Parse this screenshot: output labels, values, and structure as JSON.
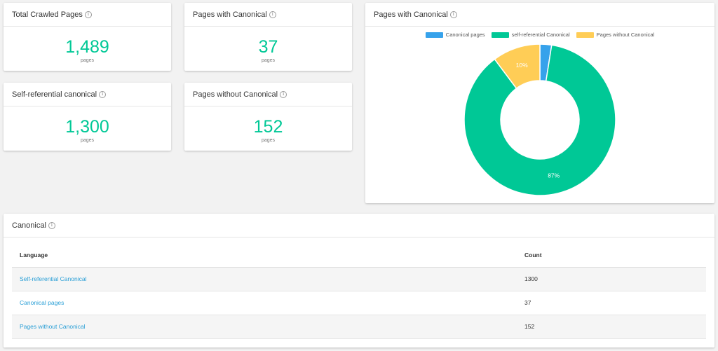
{
  "stats": [
    {
      "title": "Total Crawled Pages",
      "value": "1,489",
      "unit": "pages"
    },
    {
      "title": "Pages with Canonical",
      "value": "37",
      "unit": "pages"
    },
    {
      "title": "Self-referential canonical",
      "value": "1,300",
      "unit": "pages"
    },
    {
      "title": "Pages without Canonical",
      "value": "152",
      "unit": "pages"
    }
  ],
  "info_glyph": "i",
  "chart_card": {
    "title": "Pages with Canonical"
  },
  "chart_data": {
    "type": "pie",
    "donut": true,
    "categories": [
      "Canonical pages",
      "self-referential Canonical",
      "Pages without Canonical"
    ],
    "values": [
      37,
      1300,
      152
    ],
    "colors": [
      "#36a2eb",
      "#00c896",
      "#ffcd56"
    ],
    "data_labels": [
      "",
      "87%",
      "10%"
    ],
    "legend_position": "top"
  },
  "table_card": {
    "title": "Canonical",
    "headers": {
      "language": "Language",
      "count": "Count"
    },
    "rows": [
      {
        "label": "Self-referential Canonical",
        "count": "1300"
      },
      {
        "label": "Canonical pages",
        "count": "37"
      },
      {
        "label": "Pages without Canonical",
        "count": "152"
      }
    ]
  }
}
